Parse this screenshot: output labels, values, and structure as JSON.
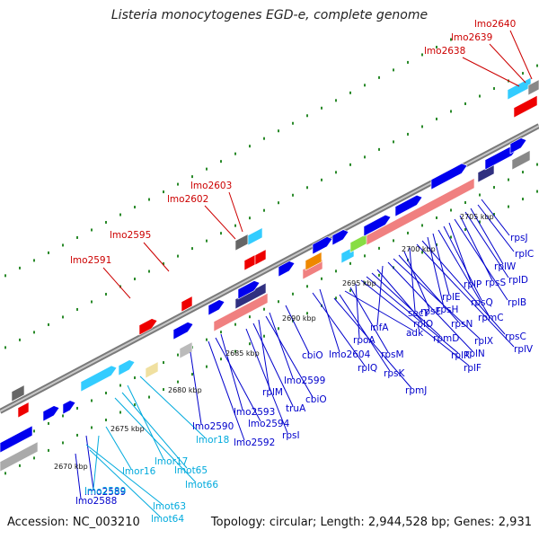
{
  "title": "Listeria monocytogenes EGD-e, complete genome",
  "footer": {
    "accession": "Accession: NC_003210",
    "topology": "Topology: circular; Length: 2,944,528 bp; Genes: 2,931"
  },
  "colors": {
    "red_label": "#cc0000",
    "blue_label": "#0000cc",
    "cyan_label": "#00aadd",
    "backbone": "#888888",
    "gene_blue": "#0000ee",
    "gene_cyan": "#33ccff",
    "gene_red": "#ee0000",
    "gene_pink": "#f08080",
    "gene_navy": "#303080"
  },
  "ruler_labels": [
    "2670 kbp",
    "2675 kbp",
    "2680 kbp",
    "2685 kbp",
    "2690 kbp",
    "2695 kbp",
    "2700 kbp",
    "2705 kbp"
  ],
  "red_labels": [
    "lmo2640",
    "lmo2639",
    "lmo2638",
    "lmo2603",
    "lmo2602",
    "lmo2595",
    "lmo2591"
  ],
  "blue_labels": [
    "rpsJ",
    "rplC",
    "rplW",
    "rplD",
    "rpsS",
    "rplB",
    "rplP",
    "rpsQ",
    "rpmC",
    "rplE",
    "rpsH",
    "rpsC",
    "rplV",
    "secY",
    "rpsE",
    "rpsN",
    "rplX",
    "rplN",
    "infA",
    "rplO",
    "rpmD",
    "rplR",
    "rplF",
    "rpoA",
    "rpsM",
    "adk",
    "rpsK",
    "rpmJ",
    "lmo2604",
    "rplQ",
    "cbiO",
    "lmo2599",
    "cbiO",
    "rplM",
    "truA",
    "rpsI",
    "lmo2593",
    "lmo2594",
    "lmo2592",
    "lmo2590",
    "lmo2589",
    "lmo2588"
  ],
  "cyan_labels": [
    "lmor18",
    "lmor17",
    "lmo2589",
    "lmor16",
    "lmot65",
    "lmot66",
    "lmot63",
    "lmot64"
  ]
}
